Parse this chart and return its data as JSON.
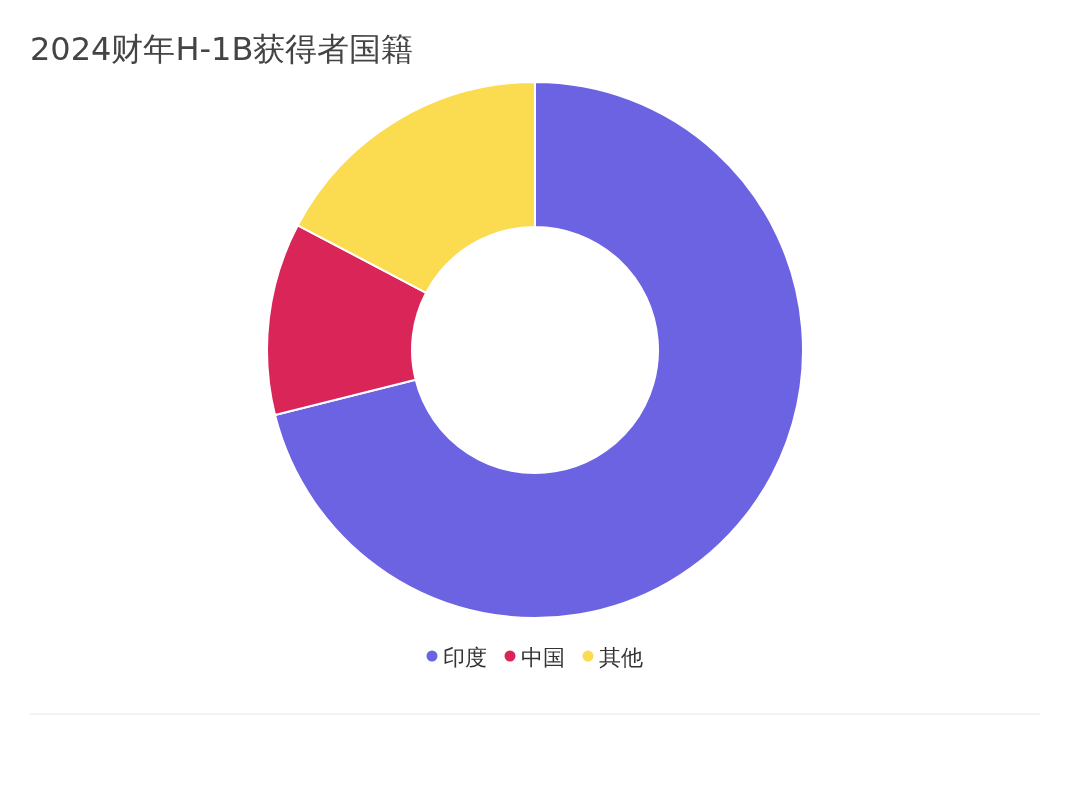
{
  "chart_data": {
    "type": "donut",
    "title": "2024财年H-1B获得者国籍",
    "categories": [
      "印度",
      "中国",
      "其他"
    ],
    "values": [
      71.1,
      11.6,
      17.3
    ],
    "colors": [
      "#6c63e3",
      "#d92557",
      "#fbdb50"
    ],
    "legend": "bottom"
  }
}
